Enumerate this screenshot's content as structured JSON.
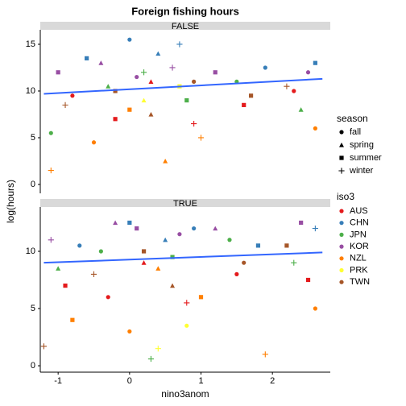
{
  "title": "Foreign fishing hours",
  "x_label": "nino3anom",
  "y_label": "log(hours)",
  "season_legend": {
    "title": "season",
    "items": [
      {
        "name": "fall",
        "shape": "circle"
      },
      {
        "name": "spring",
        "shape": "triangle"
      },
      {
        "name": "summer",
        "shape": "square"
      },
      {
        "name": "winter",
        "shape": "plus"
      }
    ]
  },
  "iso3_legend": {
    "title": "iso3"
  },
  "chart_data": [
    {
      "type": "scatter",
      "strip": "FALSE",
      "xlim": [
        -1.25,
        2.81
      ],
      "ylim": [
        -0.95,
        16.55
      ],
      "xticks": [
        -1,
        0,
        1,
        2
      ],
      "yticks": [
        0,
        5,
        10,
        15
      ],
      "trend": {
        "color": "#3366ff",
        "x": [
          -1.2,
          2.7
        ],
        "values": [
          9.7,
          11.3
        ]
      },
      "series": [
        {
          "name": "AUS",
          "color": "#e41a1c",
          "x": [
            -0.8,
            -0.2,
            0.3,
            0.9,
            1.6,
            2.3
          ],
          "values": [
            9.5,
            7,
            11,
            6.5,
            8.5,
            10
          ],
          "season": [
            "fall",
            "summer",
            "spring",
            "winter",
            "summer",
            "fall"
          ]
        },
        {
          "name": "CHN",
          "color": "#377eb8",
          "x": [
            -0.6,
            0,
            0.4,
            0.7,
            1.9,
            2.6
          ],
          "values": [
            13.5,
            15.5,
            14,
            15,
            12.5,
            13
          ],
          "season": [
            "summer",
            "fall",
            "spring",
            "winter",
            "fall",
            "summer"
          ]
        },
        {
          "name": "JPN",
          "color": "#4daf4a",
          "x": [
            -1.1,
            -0.3,
            0.2,
            0.8,
            1.5,
            2.4
          ],
          "values": [
            5.5,
            10.5,
            12,
            9,
            11,
            8
          ],
          "season": [
            "fall",
            "spring",
            "winter",
            "summer",
            "fall",
            "spring"
          ]
        },
        {
          "name": "KOR",
          "color": "#984ea3",
          "x": [
            -1.0,
            -0.4,
            0.1,
            0.6,
            1.2,
            2.5
          ],
          "values": [
            12,
            13,
            11.5,
            12.5,
            12,
            12
          ],
          "season": [
            "summer",
            "spring",
            "fall",
            "winter",
            "summer",
            "fall"
          ]
        },
        {
          "name": "NZL",
          "color": "#ff7f00",
          "x": [
            -1.1,
            -0.5,
            0,
            0.5,
            1.0,
            2.6
          ],
          "values": [
            1.5,
            4.5,
            8,
            2.5,
            5,
            6
          ],
          "season": [
            "winter",
            "fall",
            "summer",
            "spring",
            "winter",
            "fall"
          ]
        },
        {
          "name": "PRK",
          "color": "#ffff33",
          "x": [
            0.2,
            0.7
          ],
          "values": [
            9,
            10.5
          ],
          "season": [
            "spring",
            "summer"
          ]
        },
        {
          "name": "TWN",
          "color": "#a65628",
          "x": [
            -0.9,
            -0.2,
            0.3,
            0.9,
            1.7,
            2.2
          ],
          "values": [
            8.5,
            10,
            7.5,
            11,
            9.5,
            10.5
          ],
          "season": [
            "winter",
            "summer",
            "spring",
            "fall",
            "summer",
            "winter"
          ]
        }
      ]
    },
    {
      "type": "scatter",
      "strip": "TRUE",
      "xlim": [
        -1.25,
        2.81
      ],
      "ylim": [
        -0.56,
        13.87
      ],
      "xticks": [
        -1,
        0,
        1,
        2
      ],
      "yticks": [
        0,
        5,
        10
      ],
      "trend": {
        "color": "#3366ff",
        "x": [
          -1.2,
          2.7
        ],
        "values": [
          9.0,
          9.9
        ]
      },
      "series": [
        {
          "name": "AUS",
          "color": "#e41a1c",
          "x": [
            -0.9,
            -0.3,
            0.2,
            0.8,
            1.5,
            2.5
          ],
          "values": [
            7,
            6,
            9,
            5.5,
            8,
            7.5
          ],
          "season": [
            "summer",
            "fall",
            "spring",
            "winter",
            "fall",
            "summer"
          ]
        },
        {
          "name": "CHN",
          "color": "#377eb8",
          "x": [
            -0.7,
            0,
            0.5,
            0.9,
            1.8,
            2.6
          ],
          "values": [
            10.5,
            12.5,
            11,
            12,
            10.5,
            12
          ],
          "season": [
            "fall",
            "summer",
            "spring",
            "fall",
            "summer",
            "winter"
          ]
        },
        {
          "name": "JPN",
          "color": "#4daf4a",
          "x": [
            -1.0,
            -0.4,
            0.3,
            0.6,
            1.4,
            2.3
          ],
          "values": [
            8.5,
            10,
            0.6,
            9.5,
            11,
            9
          ],
          "season": [
            "spring",
            "fall",
            "winter",
            "summer",
            "fall",
            "winter"
          ]
        },
        {
          "name": "KOR",
          "color": "#984ea3",
          "x": [
            -1.1,
            -0.2,
            0.1,
            0.7,
            1.2,
            2.4
          ],
          "values": [
            11,
            12.5,
            12,
            11.5,
            12,
            12.5
          ],
          "season": [
            "winter",
            "spring",
            "summer",
            "fall",
            "spring",
            "summer"
          ]
        },
        {
          "name": "NZL",
          "color": "#ff7f00",
          "x": [
            -0.8,
            0,
            0.4,
            1.0,
            1.9,
            2.6
          ],
          "values": [
            4,
            3,
            8.5,
            6,
            1,
            5
          ],
          "season": [
            "summer",
            "fall",
            "spring",
            "summer",
            "winter",
            "fall"
          ]
        },
        {
          "name": "PRK",
          "color": "#ffff33",
          "x": [
            0.4,
            0.8
          ],
          "values": [
            1.5,
            3.5
          ],
          "season": [
            "winter",
            "fall"
          ]
        },
        {
          "name": "TWN",
          "color": "#a65628",
          "x": [
            -1.2,
            -0.5,
            0.2,
            0.6,
            1.6,
            2.2
          ],
          "values": [
            1.7,
            8,
            10,
            7,
            9,
            10.5
          ],
          "season": [
            "winter",
            "winter",
            "summer",
            "spring",
            "fall",
            "summer"
          ]
        }
      ]
    }
  ]
}
